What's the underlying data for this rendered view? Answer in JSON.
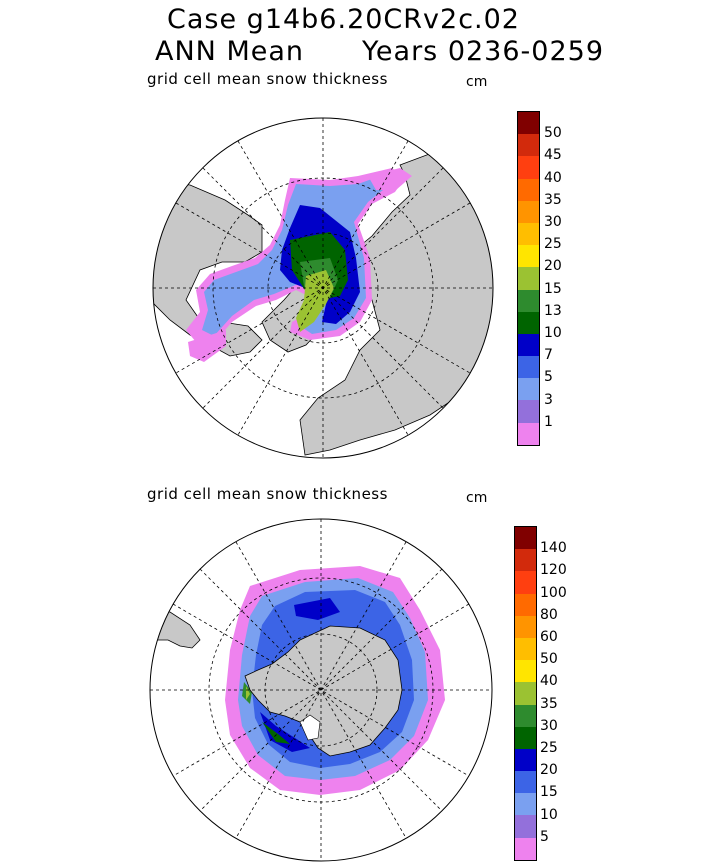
{
  "header": {
    "line1": "Case g14b6.20CRv2c.02",
    "line2_left": "ANN Mean",
    "line2_right": "Years 0236-0259"
  },
  "panels": [
    {
      "id": "north",
      "label": "grid cell mean snow thickness",
      "unit": "cm",
      "hemisphere": "north",
      "colorbar": {
        "colors": [
          "#800000",
          "#d22a0c",
          "#ff3f10",
          "#ff6a00",
          "#ff9400",
          "#ffbe00",
          "#ffe500",
          "#9bc232",
          "#2e8b2e",
          "#006400",
          "#0000c8",
          "#3c64e6",
          "#7aa0f0",
          "#9370db",
          "#ee82ee"
        ],
        "tick_labels": [
          "50",
          "45",
          "40",
          "35",
          "30",
          "25",
          "20",
          "15",
          "13",
          "10",
          "7",
          "5",
          "3",
          "1"
        ]
      }
    },
    {
      "id": "south",
      "label": "grid cell mean snow thickness",
      "unit": "cm",
      "hemisphere": "south",
      "colorbar": {
        "colors": [
          "#800000",
          "#d22a0c",
          "#ff3f10",
          "#ff6a00",
          "#ff9400",
          "#ffbe00",
          "#ffe500",
          "#9bc232",
          "#2e8b2e",
          "#006400",
          "#0000c8",
          "#3c64e6",
          "#7aa0f0",
          "#9370db",
          "#ee82ee"
        ],
        "tick_labels": [
          "140",
          "120",
          "100",
          "80",
          "60",
          "50",
          "40",
          "35",
          "30",
          "25",
          "20",
          "15",
          "10",
          "5"
        ]
      }
    }
  ],
  "colors": {
    "land": "#c8c8c8",
    "ocean": "#ffffff",
    "outline": "#000000"
  }
}
